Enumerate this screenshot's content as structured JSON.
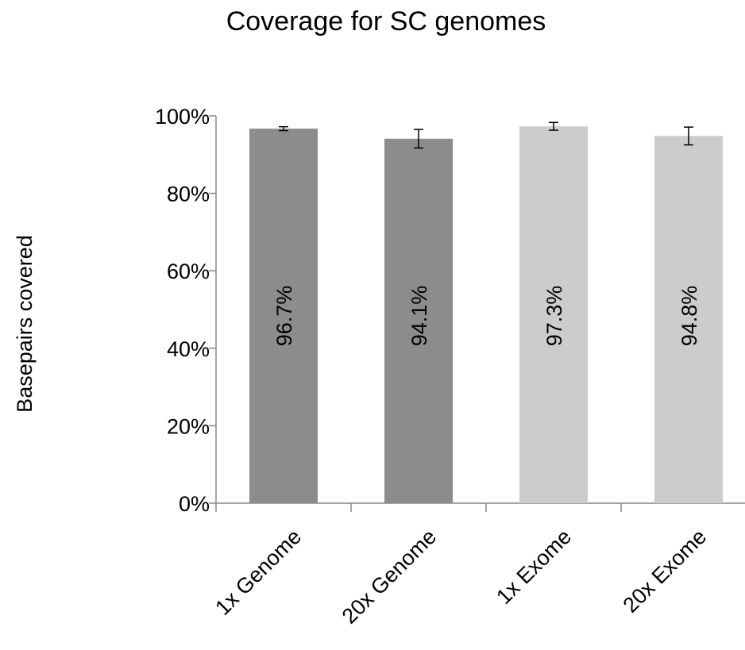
{
  "chart_data": {
    "type": "bar",
    "title": "Coverage for SC genomes",
    "xlabel": "",
    "ylabel": "Basepairs covered",
    "categories": [
      "1x Genome",
      "20x Genome",
      "1x Exome",
      "20x Exome"
    ],
    "values": [
      96.7,
      94.1,
      97.3,
      94.8
    ],
    "value_labels": [
      "96.7%",
      "94.1%",
      "97.3%",
      "94.8%"
    ],
    "error_bars": [
      {
        "low": 96.2,
        "high": 97.2
      },
      {
        "low": 91.7,
        "high": 96.5
      },
      {
        "low": 96.3,
        "high": 98.3
      },
      {
        "low": 92.5,
        "high": 97.1
      }
    ],
    "bar_colors": [
      "#8c8c8c",
      "#8c8c8c",
      "#cccccc",
      "#cccccc"
    ],
    "ylim": [
      0,
      100
    ],
    "yticks": [
      0,
      20,
      40,
      60,
      80,
      100
    ],
    "ytick_labels": [
      "0%",
      "20%",
      "40%",
      "60%",
      "80%",
      "100%"
    ],
    "grid": false,
    "legend": "none"
  }
}
